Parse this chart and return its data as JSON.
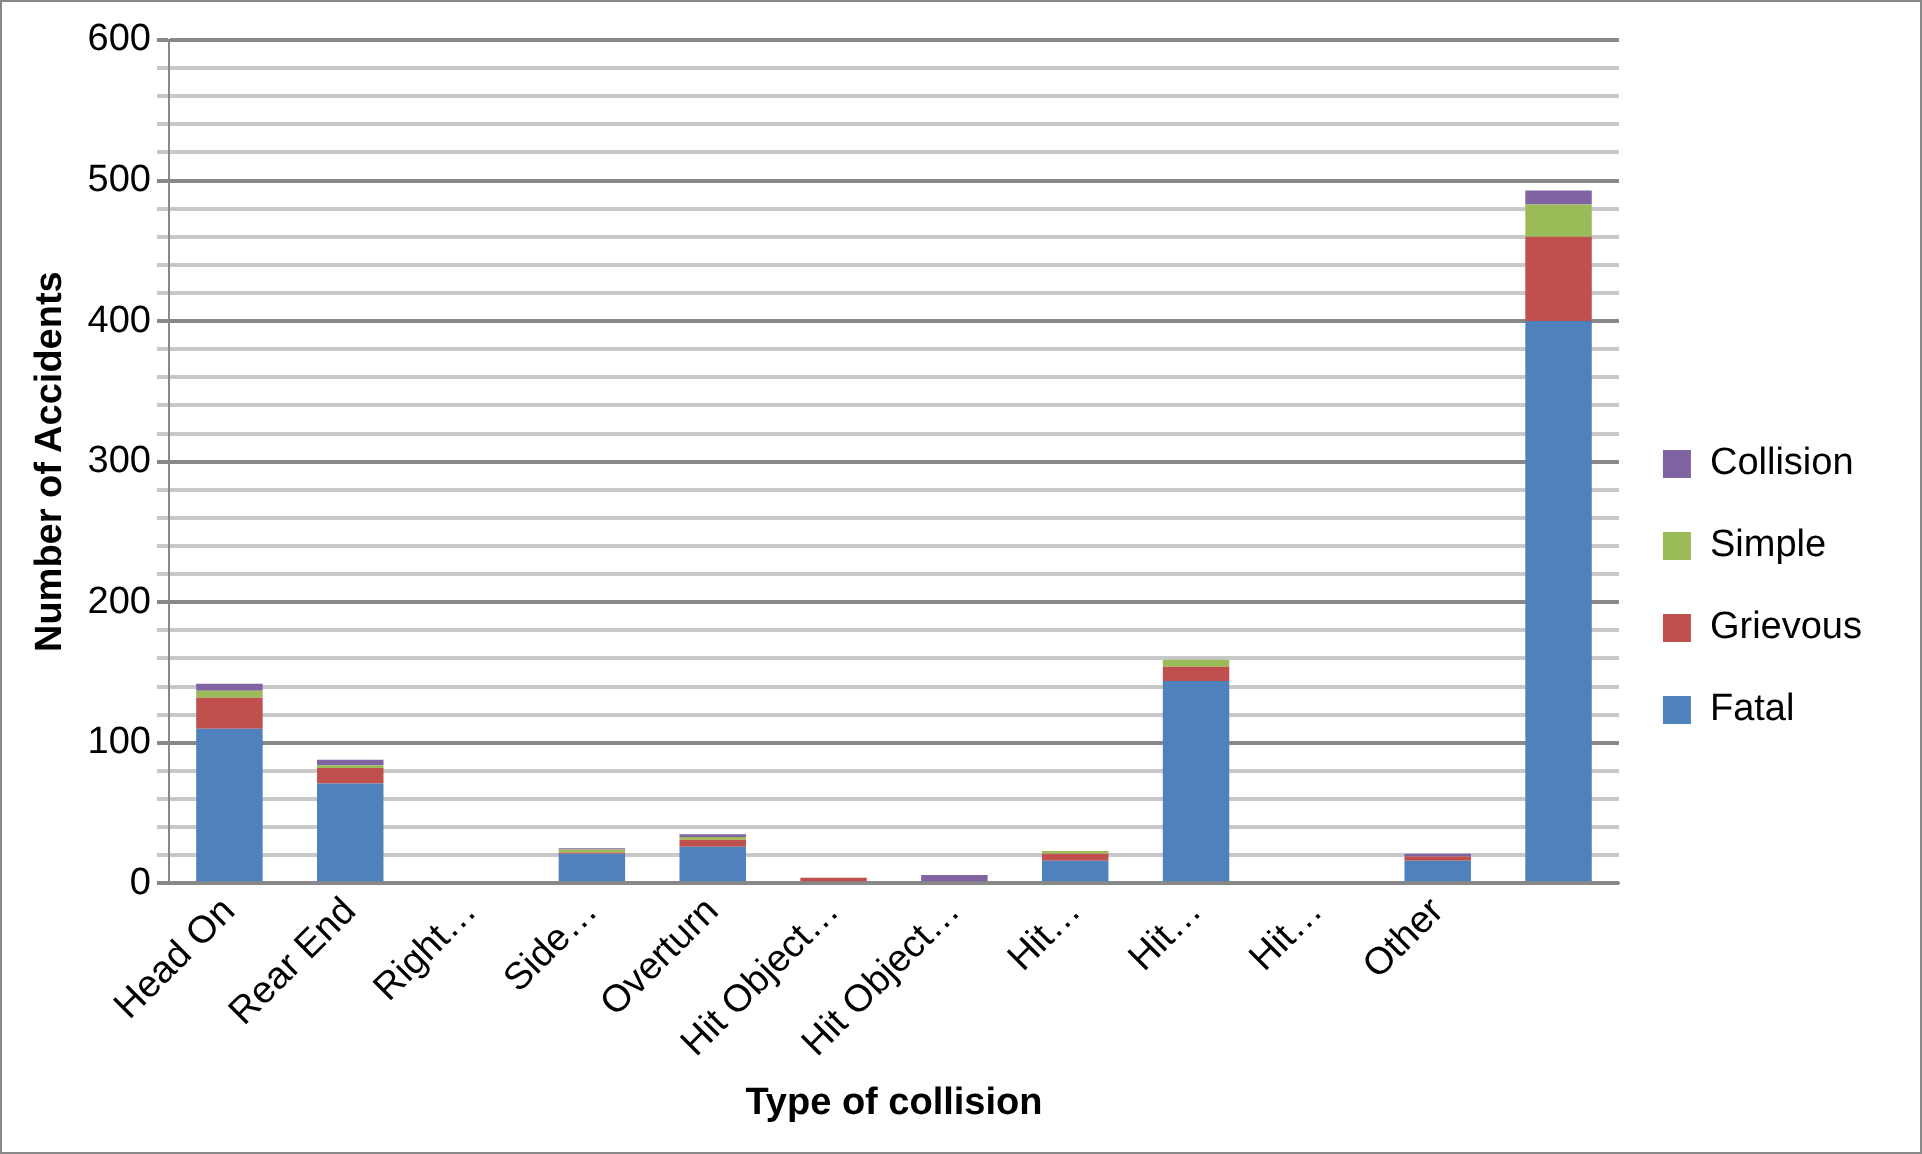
{
  "chart_data": {
    "type": "bar",
    "stacked": true,
    "xlabel": "Type of collision",
    "ylabel": "Number of Accidents",
    "categories": [
      "Head On",
      "Rear End",
      "Right…",
      "Side…",
      "Overturn",
      "Hit Object…",
      "Hit Object…",
      "Hit…",
      "Hit…",
      "Hit…",
      "Other",
      null
    ],
    "series": [
      {
        "name": "Fatal",
        "color": "#4f81bd",
        "values": [
          110,
          71,
          0,
          21,
          26,
          0,
          0,
          16,
          144,
          0,
          16,
          400
        ]
      },
      {
        "name": "Grievous",
        "color": "#c0504d",
        "values": [
          22,
          11,
          0,
          1,
          5,
          4,
          0,
          5,
          10,
          0,
          3,
          60
        ]
      },
      {
        "name": "Simple",
        "color": "#9bbb59",
        "values": [
          5,
          2,
          0,
          2,
          2,
          0,
          0,
          2,
          5,
          0,
          0,
          23
        ]
      },
      {
        "name": "Collision",
        "color": "#8064a2",
        "values": [
          5,
          4,
          0,
          1,
          2,
          0,
          6,
          0,
          0,
          0,
          2,
          10
        ]
      }
    ],
    "ylim": [
      0,
      600
    ],
    "yticks": [
      0,
      {
        "value": 20,
        "label": null
      },
      {
        "value": 40,
        "label": null
      },
      {
        "value": 60,
        "label": null
      },
      {
        "value": 80,
        "label": null
      },
      100,
      {
        "value": 120,
        "label": null
      },
      {
        "value": 140,
        "label": null
      },
      {
        "value": 160,
        "label": null
      },
      {
        "value": 180,
        "label": null
      },
      200,
      {
        "value": 220,
        "label": null
      },
      {
        "value": 240,
        "label": null
      },
      {
        "value": 260,
        "label": null
      },
      {
        "value": 280,
        "label": null
      },
      300,
      {
        "value": 320,
        "label": null
      },
      {
        "value": 340,
        "label": null
      },
      {
        "value": 360,
        "label": null
      },
      {
        "value": 380,
        "label": null
      },
      400,
      {
        "value": 420,
        "label": null
      },
      {
        "value": 440,
        "label": null
      },
      {
        "value": 460,
        "label": null
      },
      {
        "value": 480,
        "label": null
      },
      500,
      {
        "value": 520,
        "label": null
      },
      {
        "value": 540,
        "label": null
      },
      {
        "value": 560,
        "label": null
      },
      {
        "value": 580,
        "label": null
      },
      600
    ],
    "grid": "y",
    "legend": "right"
  }
}
